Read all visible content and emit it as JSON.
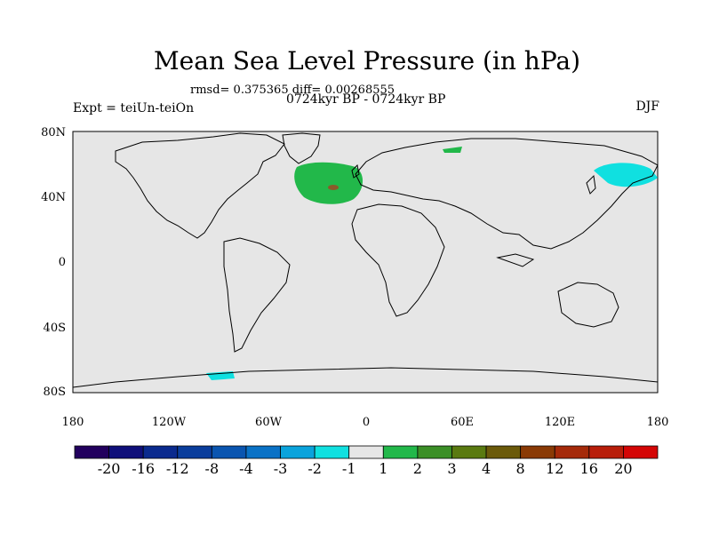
{
  "title": "Mean Sea Level Pressure (in hPa)",
  "stats": "rmsd= 0.375365 diff= 0.00268555",
  "period": "0724kyr BP - 0724kyr BP",
  "experiment": "Expt = teiUn-teiOn",
  "season": "DJF",
  "lat_labels": [
    "80N",
    "40N",
    "0",
    "40S",
    "80S"
  ],
  "lon_labels": [
    "180",
    "120W",
    "60W",
    "0",
    "60E",
    "120E",
    "180"
  ],
  "colorbar": {
    "colors": [
      "#22005e",
      "#0f0f7a",
      "#0a2a8e",
      "#0a3d9c",
      "#0a55b0",
      "#0a72c6",
      "#0aa3dc",
      "#10e0e0",
      "#e6e6e6",
      "#22b84a",
      "#3b8f26",
      "#5a7a10",
      "#6b5a0a",
      "#8a3a05",
      "#a52a0a",
      "#b81e0a",
      "#d40505"
    ],
    "labels": [
      "-20",
      "-16",
      "-12",
      "-8",
      "-4",
      "-3",
      "-2",
      "-1",
      "1",
      "2",
      "3",
      "4",
      "8",
      "12",
      "16",
      "20"
    ]
  },
  "map_colors": {
    "background": "#e6e6e6",
    "positive_1": "#22b84a",
    "positive_2": "#8a5a2a",
    "negative_1": "#10e0e0"
  }
}
